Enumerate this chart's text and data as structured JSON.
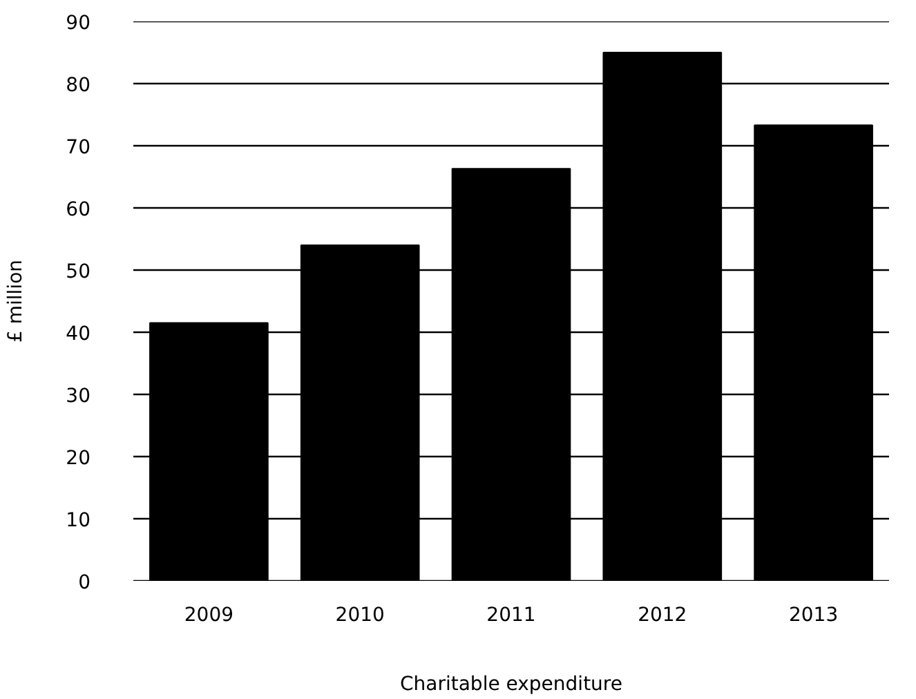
{
  "chart_data": {
    "type": "bar",
    "categories": [
      "2009",
      "2010",
      "2011",
      "2012",
      "2013"
    ],
    "values": [
      41.5,
      54,
      66.3,
      85,
      73.3
    ],
    "color": "#000000",
    "xlabel": "Charitable expenditure",
    "ylabel": "£ million",
    "ylim": [
      0,
      90
    ],
    "yticks": [
      0,
      10,
      20,
      30,
      40,
      50,
      60,
      70,
      80,
      90
    ],
    "grid": "y"
  }
}
